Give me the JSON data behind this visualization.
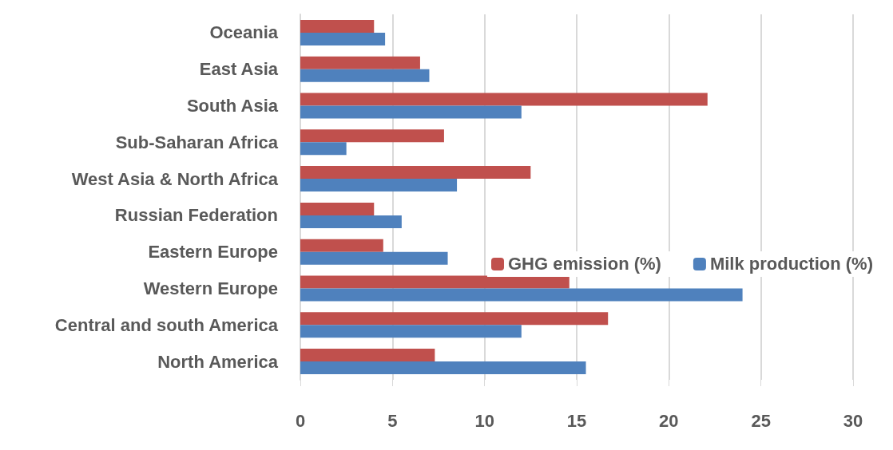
{
  "chart_data": {
    "type": "bar",
    "orientation": "horizontal",
    "categories": [
      "Oceania",
      "East Asia",
      "South Asia",
      "Sub-Saharan Africa",
      "West Asia & North Africa",
      "Russian Federation",
      "Eastern Europe",
      "Western Europe",
      "Central and south America",
      "North America"
    ],
    "series": [
      {
        "name": "GHG emission (%)",
        "color": "#c0504d",
        "values": [
          4.0,
          6.5,
          22.1,
          7.8,
          12.5,
          4.0,
          4.5,
          14.6,
          16.7,
          7.3
        ]
      },
      {
        "name": "Milk production (%)",
        "color": "#4f81bd",
        "values": [
          4.6,
          7.0,
          12.0,
          2.5,
          8.5,
          5.5,
          8.0,
          24.0,
          12.0,
          15.5
        ]
      }
    ],
    "xlim": [
      0,
      30
    ],
    "xticks": [
      0,
      5,
      10,
      15,
      20,
      25,
      30
    ],
    "grid": "x",
    "legend": "right"
  }
}
